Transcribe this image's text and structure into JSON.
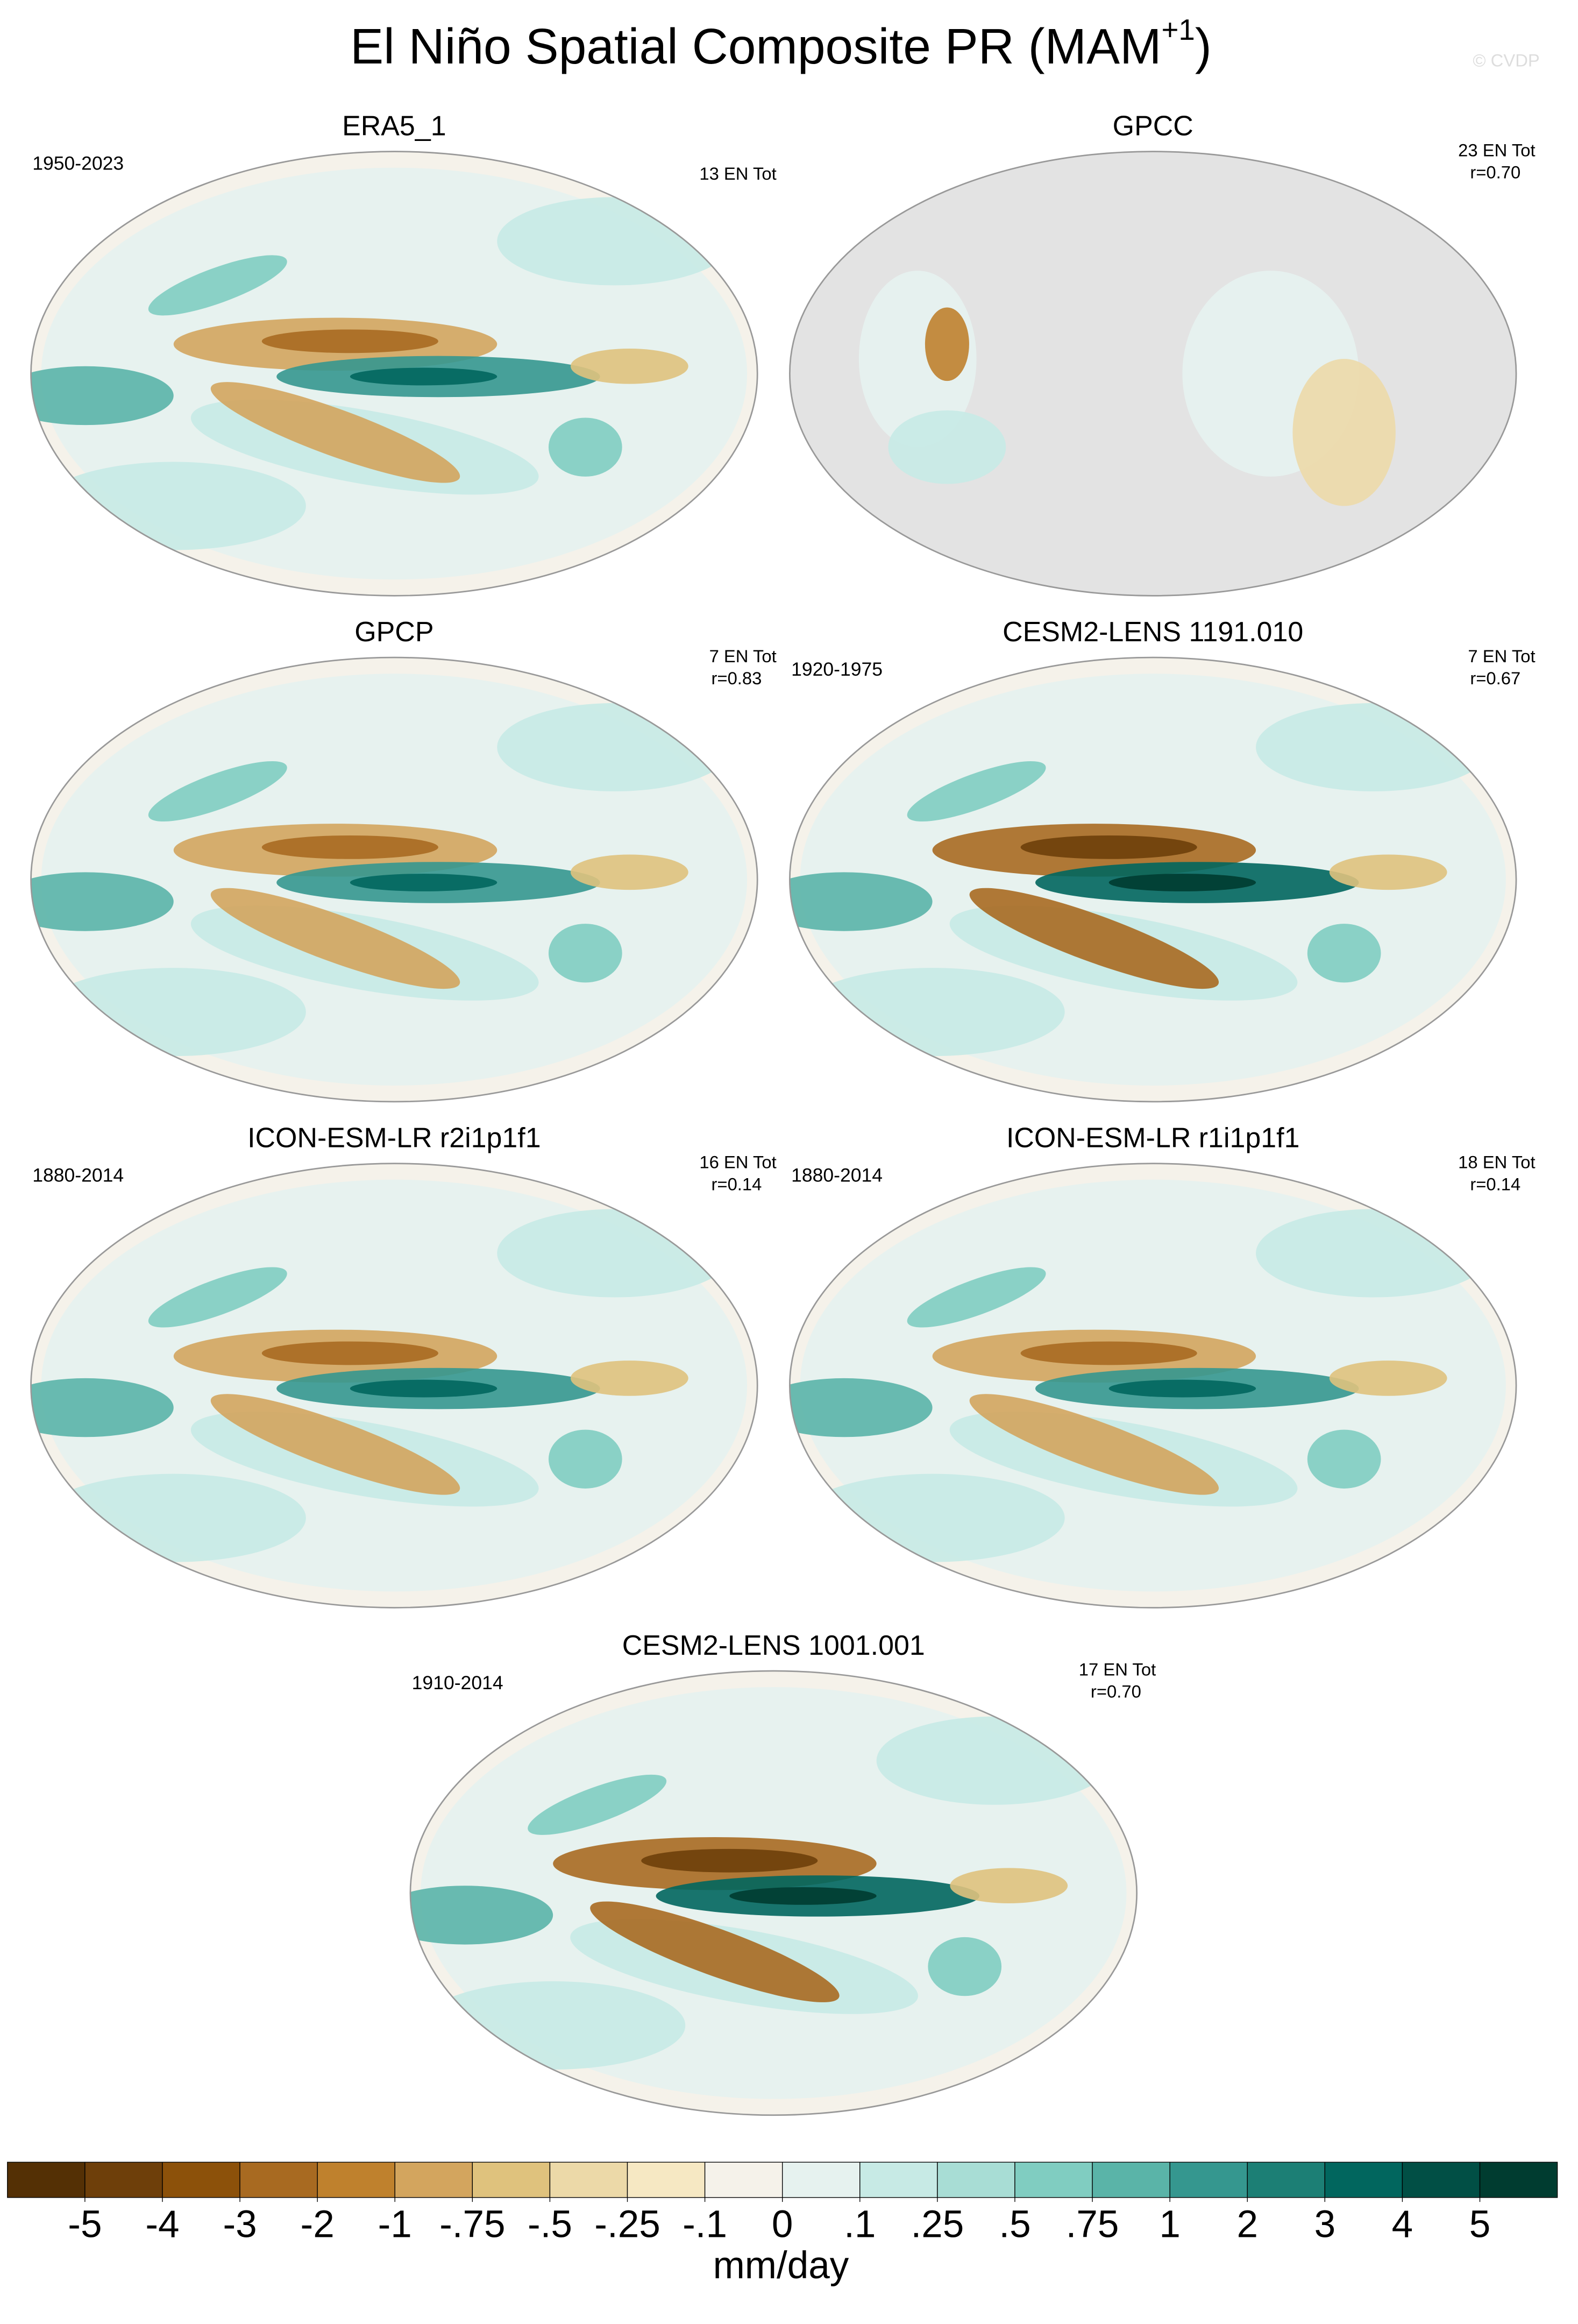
{
  "title": {
    "text": "El Niño Spatial Composite PR (MAM",
    "superscript": "+1",
    "close": ")"
  },
  "watermark": "© CVDP",
  "panels": [
    {
      "title": "ERA5_1",
      "period": "1950-2023",
      "count": "13 EN Tot"
    },
    {
      "title": "GPCC",
      "count": "23 EN Tot",
      "r": "r=0.70"
    },
    {
      "title": "GPCP",
      "count": "7 EN Tot",
      "r": "r=0.83"
    },
    {
      "title": "CESM2-LENS 1191.010",
      "period": "1920-1975",
      "count": "7 EN Tot",
      "r": "r=0.67"
    },
    {
      "title": "ICON-ESM-LR r2i1p1f1",
      "period": "1880-2014",
      "count": "16 EN Tot",
      "r": "r=0.14"
    },
    {
      "title": "ICON-ESM-LR r1i1p1f1",
      "period": "1880-2014",
      "count": "18 EN Tot",
      "r": "r=0.14"
    },
    {
      "title": "CESM2-LENS 1001.001",
      "period": "1910-2014",
      "count": "17 EN Tot",
      "r": "r=0.70"
    }
  ],
  "colorbar": {
    "colors": [
      "#543005",
      "#6e3f0a",
      "#8c510a",
      "#a86a21",
      "#bf812d",
      "#d3a55e",
      "#dfc27d",
      "#ecd9a8",
      "#f6e8c3",
      "#f5f2ea",
      "#e6f2ef",
      "#c7eae5",
      "#a8ddd5",
      "#80cdc1",
      "#5ab4a8",
      "#35978f",
      "#1c7f75",
      "#01665e",
      "#014f45",
      "#003c30"
    ],
    "ticks": [
      -5,
      -4,
      -3,
      -2,
      -1,
      {
        "value": -0.75,
        "label": "-.75"
      },
      {
        "value": -0.5,
        "label": "-.5"
      },
      {
        "value": -0.25,
        "label": "-.25"
      },
      {
        "value": -0.1,
        "label": "-.1"
      },
      0,
      {
        "value": 0.1,
        "label": ".1"
      },
      {
        "value": 0.25,
        "label": ".25"
      },
      {
        "value": 0.5,
        "label": ".5"
      },
      {
        "value": 0.75,
        "label": ".75"
      },
      1,
      2,
      3,
      4,
      5
    ],
    "units": "mm/day"
  }
}
